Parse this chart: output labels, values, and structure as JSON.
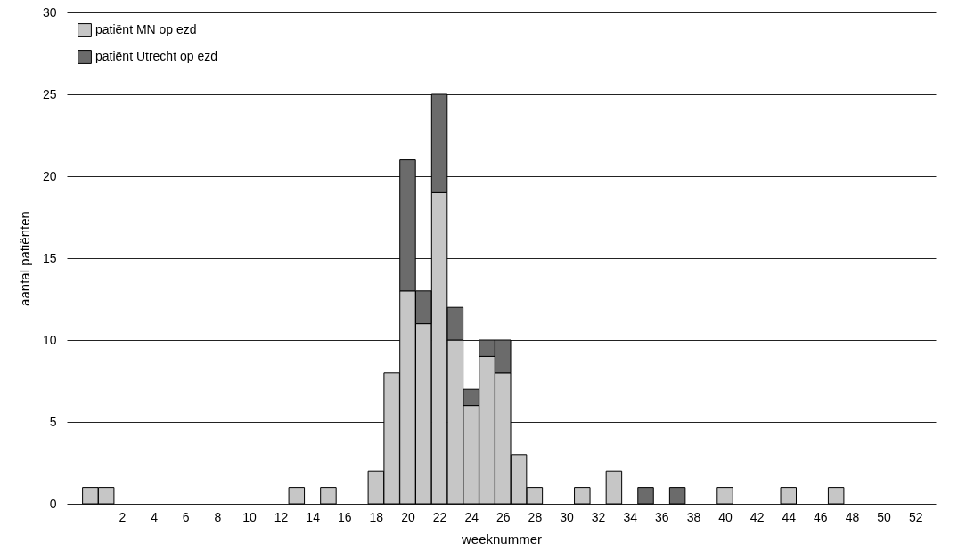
{
  "chart_data": {
    "type": "bar",
    "xlabel": "weeknummer",
    "ylabel": "aantal patiënten",
    "x": [
      0,
      1,
      13,
      15,
      18,
      19,
      20,
      21,
      22,
      23,
      24,
      25,
      26,
      27,
      28,
      31,
      33,
      35,
      37,
      40,
      44,
      47
    ],
    "series": [
      {
        "name": "patiënt MN op ezd",
        "color": "#c6c6c6",
        "values": [
          1,
          1,
          1,
          1,
          2,
          8,
          13,
          11,
          19,
          10,
          6,
          9,
          8,
          3,
          1,
          1,
          2,
          null,
          null,
          1,
          1,
          1
        ]
      },
      {
        "name": "patiënt Utrecht op ezd",
        "color": "#6b6b6b",
        "values": [
          null,
          null,
          null,
          null,
          null,
          null,
          8,
          2,
          6,
          2,
          1,
          1,
          2,
          null,
          null,
          null,
          null,
          1,
          1,
          null,
          null,
          null
        ]
      }
    ],
    "stacked": true,
    "xlim": [
      -1.2,
      53
    ],
    "xticks": [
      2,
      4,
      6,
      8,
      10,
      12,
      14,
      16,
      18,
      20,
      22,
      24,
      26,
      28,
      30,
      32,
      34,
      36,
      38,
      40,
      42,
      44,
      46,
      48,
      50,
      52
    ],
    "ylim": [
      0,
      30
    ],
    "yticks": [
      0,
      5,
      10,
      15,
      20,
      25,
      30
    ],
    "grid": "y",
    "legend": "top left"
  }
}
